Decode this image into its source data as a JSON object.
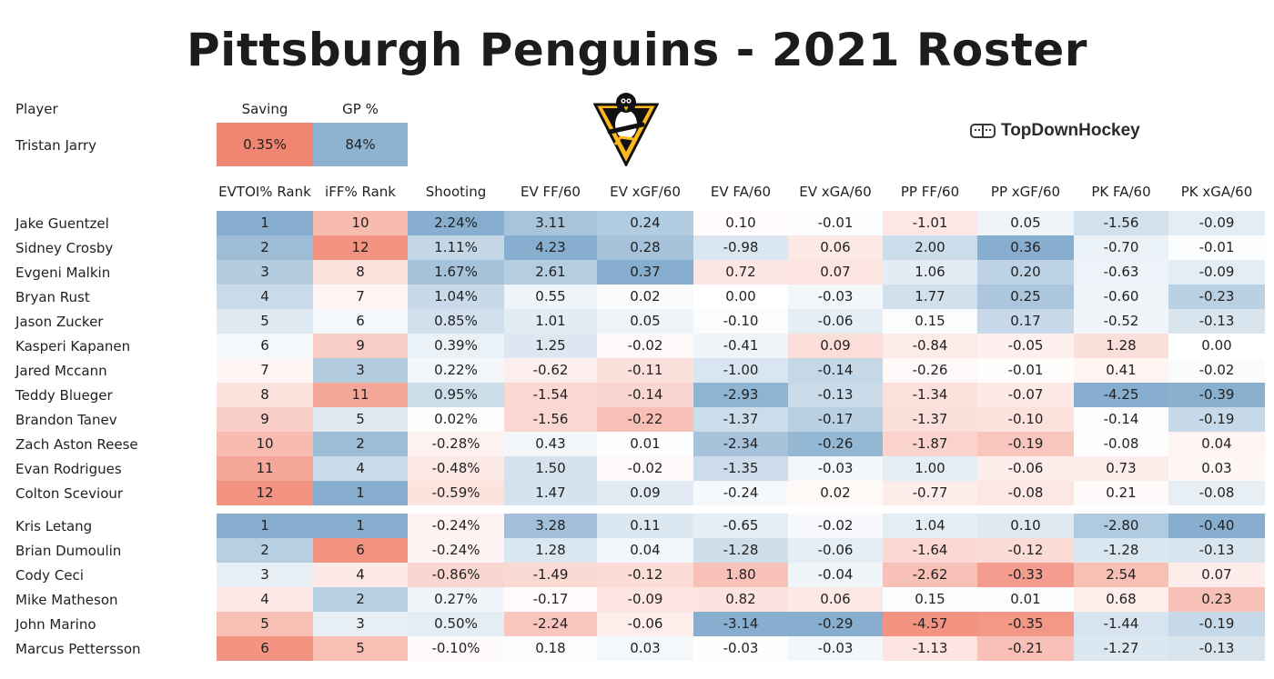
{
  "title": "Pittsburgh Penguins - 2021 Roster",
  "brand": {
    "name": "TopDownHockey",
    "logo_icon": "rink-icon",
    "team_logo": "penguins-logo"
  },
  "goalie": {
    "player_header": "Player",
    "columns": [
      "Saving",
      "GP %"
    ],
    "name": "Tristan Jarry",
    "saving": "0.35%",
    "gp_pct": "84%",
    "saving_color": "#f08572",
    "gp_color": "#8eb3d1"
  },
  "colors": {
    "positive": "#6b9bc3",
    "negative": "#f07a66",
    "neutral": "#ffffff"
  },
  "chart_data": {
    "type": "table",
    "title": "Pittsburgh Penguins - 2021 Roster",
    "columns": [
      "EVTOI% Rank",
      "iFF% Rank",
      "Shooting",
      "EV FF/60",
      "EV xGF/60",
      "EV FA/60",
      "EV xGA/60",
      "PP FF/60",
      "PP xGF/60",
      "PK FA/60",
      "PK xGA/60"
    ],
    "forwards": [
      {
        "name": "Jake Guentzel",
        "values": [
          "1",
          "10",
          "2.24%",
          "3.11",
          "0.24",
          "0.10",
          "-0.01",
          "-1.01",
          "0.05",
          "-1.56",
          "-0.09"
        ]
      },
      {
        "name": "Sidney Crosby",
        "values": [
          "2",
          "12",
          "1.11%",
          "4.23",
          "0.28",
          "-0.98",
          "0.06",
          "2.00",
          "0.36",
          "-0.70",
          "-0.01"
        ]
      },
      {
        "name": "Evgeni Malkin",
        "values": [
          "3",
          "8",
          "1.67%",
          "2.61",
          "0.37",
          "0.72",
          "0.07",
          "1.06",
          "0.20",
          "-0.63",
          "-0.09"
        ]
      },
      {
        "name": "Bryan Rust",
        "values": [
          "4",
          "7",
          "1.04%",
          "0.55",
          "0.02",
          "0.00",
          "-0.03",
          "1.77",
          "0.25",
          "-0.60",
          "-0.23"
        ]
      },
      {
        "name": "Jason Zucker",
        "values": [
          "5",
          "6",
          "0.85%",
          "1.01",
          "0.05",
          "-0.10",
          "-0.06",
          "0.15",
          "0.17",
          "-0.52",
          "-0.13"
        ]
      },
      {
        "name": "Kasperi Kapanen",
        "values": [
          "6",
          "9",
          "0.39%",
          "1.25",
          "-0.02",
          "-0.41",
          "0.09",
          "-0.84",
          "-0.05",
          "1.28",
          "0.00"
        ]
      },
      {
        "name": "Jared Mccann",
        "values": [
          "7",
          "3",
          "0.22%",
          "-0.62",
          "-0.11",
          "-1.00",
          "-0.14",
          "-0.26",
          "-0.01",
          "0.41",
          "-0.02"
        ]
      },
      {
        "name": "Teddy Blueger",
        "values": [
          "8",
          "11",
          "0.95%",
          "-1.54",
          "-0.14",
          "-2.93",
          "-0.13",
          "-1.34",
          "-0.07",
          "-4.25",
          "-0.39"
        ]
      },
      {
        "name": "Brandon Tanev",
        "values": [
          "9",
          "5",
          "0.02%",
          "-1.56",
          "-0.22",
          "-1.37",
          "-0.17",
          "-1.37",
          "-0.10",
          "-0.14",
          "-0.19"
        ]
      },
      {
        "name": "Zach Aston Reese",
        "values": [
          "10",
          "2",
          "-0.28%",
          "0.43",
          "0.01",
          "-2.34",
          "-0.26",
          "-1.87",
          "-0.19",
          "-0.08",
          "0.04"
        ]
      },
      {
        "name": "Evan Rodrigues",
        "values": [
          "11",
          "4",
          "-0.48%",
          "1.50",
          "-0.02",
          "-1.35",
          "-0.03",
          "1.00",
          "-0.06",
          "0.73",
          "0.03"
        ]
      },
      {
        "name": "Colton Sceviour",
        "values": [
          "12",
          "1",
          "-0.59%",
          "1.47",
          "0.09",
          "-0.24",
          "0.02",
          "-0.77",
          "-0.08",
          "0.21",
          "-0.08"
        ]
      }
    ],
    "defense": [
      {
        "name": "Kris Letang",
        "values": [
          "1",
          "1",
          "-0.24%",
          "3.28",
          "0.11",
          "-0.65",
          "-0.02",
          "1.04",
          "0.10",
          "-2.80",
          "-0.40"
        ]
      },
      {
        "name": "Brian Dumoulin",
        "values": [
          "2",
          "6",
          "-0.24%",
          "1.28",
          "0.04",
          "-1.28",
          "-0.06",
          "-1.64",
          "-0.12",
          "-1.28",
          "-0.13"
        ]
      },
      {
        "name": "Cody Ceci",
        "values": [
          "3",
          "4",
          "-0.86%",
          "-1.49",
          "-0.12",
          "1.80",
          "-0.04",
          "-2.62",
          "-0.33",
          "2.54",
          "0.07"
        ]
      },
      {
        "name": "Mike Matheson",
        "values": [
          "4",
          "2",
          "0.27%",
          "-0.17",
          "-0.09",
          "0.82",
          "0.06",
          "0.15",
          "0.01",
          "0.68",
          "0.23"
        ]
      },
      {
        "name": "John Marino",
        "values": [
          "5",
          "3",
          "0.50%",
          "-2.24",
          "-0.06",
          "-3.14",
          "-0.29",
          "-4.57",
          "-0.35",
          "-1.44",
          "-0.19"
        ]
      },
      {
        "name": "Marcus Pettersson",
        "values": [
          "6",
          "5",
          "-0.10%",
          "0.18",
          "0.03",
          "-0.03",
          "-0.03",
          "-1.13",
          "-0.21",
          "-1.27",
          "-0.13"
        ]
      }
    ]
  }
}
